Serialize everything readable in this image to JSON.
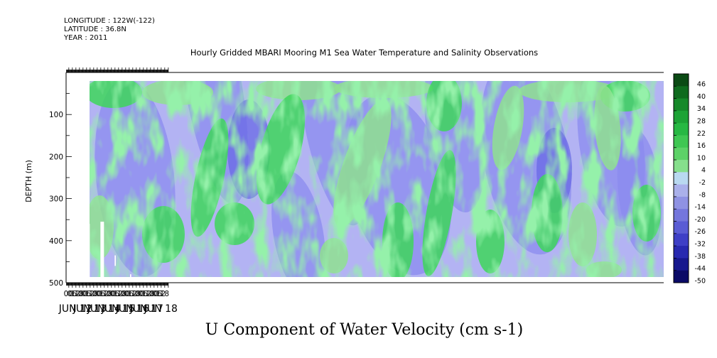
{
  "header": {
    "longitude": "LONGITUDE : 122W(-122)",
    "latitude": "LATITUDE : 36.8N",
    "year": "YEAR : 2011"
  },
  "chart_data": {
    "type": "heatmap",
    "title": "Hourly Gridded MBARI Mooring M1 Sea Water Temperature and Salinity Observations",
    "footer_title": "U Component of Water Velocity (cm s-1)",
    "ylabel": "DEPTH (m)",
    "xlabel": "",
    "x_range": [
      "JUN 11 20",
      "JUN 18 24"
    ],
    "y_range": [
      500,
      0
    ],
    "y_data_range": [
      20,
      490
    ],
    "y_ticks": [
      100,
      200,
      300,
      400,
      500
    ],
    "hour_labels": [
      "00",
      "06",
      "12",
      "18"
    ],
    "day_labels": [
      "JUN 12",
      "JUN 13",
      "JUN 14",
      "JUN 15",
      "JUN 16",
      "JUN 17",
      "JUN 18"
    ],
    "colorbar": {
      "levels": [
        "46",
        "40",
        "34",
        "28",
        "22",
        "16",
        "10",
        "4",
        "-2",
        "-8",
        "-14",
        "-20",
        "-26",
        "-32",
        "-38",
        "-44",
        "-50"
      ],
      "colors": [
        "#0b4a14",
        "#0f6b1e",
        "#16892a",
        "#1da336",
        "#27b843",
        "#3fc753",
        "#5dd268",
        "#86df8c",
        "#b9d9f0",
        "#aab0ea",
        "#8f92e3",
        "#7476dc",
        "#5a5cd4",
        "#3e3fc6",
        "#2829b0",
        "#17188e",
        "#0a0a66"
      ]
    },
    "colormap": {
      "green_light": "#8fe08f",
      "green": "#3ed65a",
      "blue_light": "#b3b3f3",
      "blue": "#8b8bef",
      "blue_dark": "#6a6ae6",
      "missing": "#ffffff"
    },
    "missing_data_blocks": [
      {
        "x_start": "JUN 13 06",
        "x_end": "JUN 13 10",
        "depth_top": 418,
        "depth_bottom": 490
      },
      {
        "x_start": "JUN 13 10",
        "x_end": "JUN 13 12",
        "depth_top": 360,
        "depth_bottom": 490
      },
      {
        "x_start": "JUN 14 06",
        "x_end": "JUN 14 12",
        "depth_top": 355,
        "depth_bottom": 490
      },
      {
        "x_start": "JUN 15 06",
        "x_end": "JUN 15 08",
        "depth_top": 435,
        "depth_bottom": 460
      },
      {
        "x_start": "JUN 16 08",
        "x_end": "JUN 16 10",
        "depth_top": 480,
        "depth_bottom": 490
      }
    ],
    "grid": false
  }
}
